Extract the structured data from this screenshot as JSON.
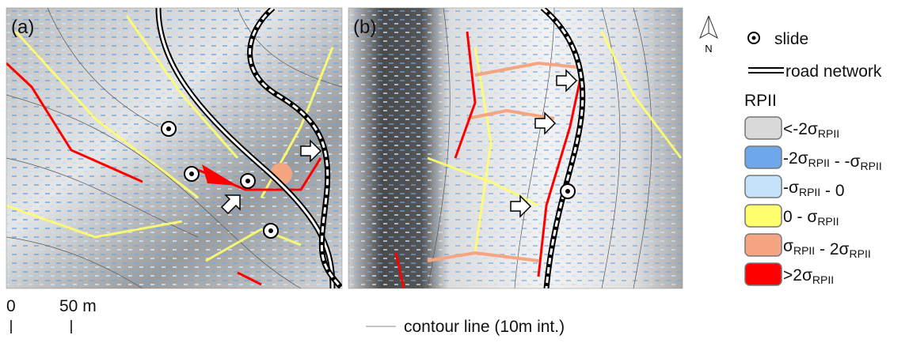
{
  "panels": [
    {
      "label": "(a)"
    },
    {
      "label": "(b)"
    }
  ],
  "north": "N",
  "legend": {
    "slide": "slide",
    "road": "road network",
    "title": "RPII",
    "items": [
      {
        "color": "#d9d9d9",
        "label": [
          {
            "text": "<-2σ"
          },
          {
            "sub": "RPII"
          }
        ]
      },
      {
        "color": "#6fa8ea",
        "label": [
          {
            "text": "-2σ"
          },
          {
            "sub": "RPII"
          },
          {
            "text": " - -σ"
          },
          {
            "sub": "RPII"
          }
        ]
      },
      {
        "color": "#c4e2f8",
        "label": [
          {
            "text": "-σ"
          },
          {
            "sub": "RPII"
          },
          {
            "text": " - 0"
          }
        ]
      },
      {
        "color": "#ffff6e",
        "label": [
          {
            "text": "0 - σ"
          },
          {
            "sub": "RPII"
          }
        ]
      },
      {
        "color": "#f6a582",
        "label": [
          {
            "text": "σ"
          },
          {
            "sub": "RPII"
          },
          {
            "text": " - 2σ"
          },
          {
            "sub": "RPII"
          }
        ]
      },
      {
        "color": "#ff0000",
        "label": [
          {
            "text": ">2σ"
          },
          {
            "sub": "RPII"
          }
        ]
      }
    ],
    "contour": "contour line (10m int.)"
  },
  "scale": {
    "start": "0",
    "end": "50 m"
  }
}
